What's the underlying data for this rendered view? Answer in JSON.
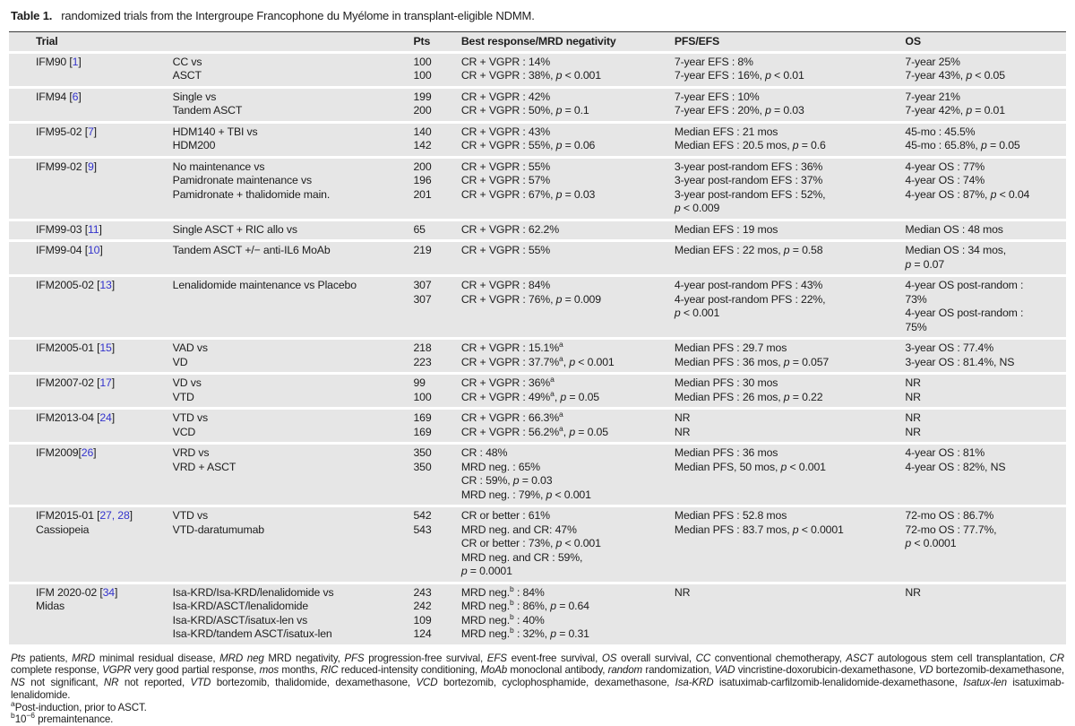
{
  "title": {
    "label": "Table 1.",
    "text": "randomized trials from the Intergroupe Francophone du Myélome in transplant-eligible NDMM."
  },
  "colors": {
    "row_background": "#e6e6e6",
    "citation_blue": "#3333cc",
    "header_rule": "#3a3a3a"
  },
  "table": {
    "headers": {
      "trial": "Trial",
      "pts": "Pts",
      "response": "Best response/MRD negativity",
      "pfs": "PFS/EFS",
      "os": "OS"
    },
    "rows": [
      {
        "trial": [
          "IFM90 [[1]]"
        ],
        "arms": [
          "CC vs",
          "ASCT"
        ],
        "pts": [
          "100",
          "100"
        ],
        "response": [
          "CR + VGPR : 14%",
          "CR + VGPR : 38%, *p* < 0.001"
        ],
        "pfs": [
          "7-year EFS : 8%",
          "7-year EFS : 16%, *p* < 0.01"
        ],
        "os": [
          "7-year 25%",
          "7-year 43%, *p* < 0.05"
        ]
      },
      {
        "trial": [
          "IFM94 [[6]]"
        ],
        "arms": [
          "Single vs",
          "Tandem ASCT"
        ],
        "pts": [
          "199",
          "200"
        ],
        "response": [
          "CR + VGPR : 42%",
          "CR + VGPR : 50%, *p* = 0.1"
        ],
        "pfs": [
          "7-year EFS : 10%",
          "7-year EFS : 20%, *p* = 0.03"
        ],
        "os": [
          "7-year 21%",
          "7-year 42%, *p* = 0.01"
        ]
      },
      {
        "trial": [
          "IFM95-02 [[7]]"
        ],
        "arms": [
          "HDM140 + TBI vs",
          "HDM200"
        ],
        "pts": [
          "140",
          "142"
        ],
        "response": [
          "CR + VGPR : 43%",
          "CR + VGPR : 55%, *p* = 0.06"
        ],
        "pfs": [
          "Median EFS : 21 mos",
          "Median EFS : 20.5 mos, *p* = 0.6"
        ],
        "os": [
          "45-mo : 45.5%",
          "45-mo : 65.8%, *p* = 0.05"
        ]
      },
      {
        "trial": [
          "IFM99-02 [[9]]"
        ],
        "arms": [
          "No maintenance vs",
          "Pamidronate maintenance vs",
          "Pamidronate + thalidomide main."
        ],
        "pts": [
          "200",
          "196",
          "201"
        ],
        "response": [
          "CR + VGPR : 55%",
          "CR + VGPR : 57%",
          "CR + VGPR : 67%, *p* = 0.03"
        ],
        "pfs": [
          "3-year post-random EFS : 36%",
          "3-year post-random EFS : 37%",
          "3-year post-random EFS : 52%,",
          "*p* < 0.009"
        ],
        "os": [
          "4-year OS : 77%",
          "4-year OS : 74%",
          "4-year OS : 87%, *p* < 0.04"
        ]
      },
      {
        "trial": [
          "IFM99-03 [[11]]"
        ],
        "arms": [
          "Single ASCT + RIC allo vs"
        ],
        "pts": [
          "65"
        ],
        "response": [
          "CR + VGPR : 62.2%"
        ],
        "pfs": [
          "Median EFS : 19 mos"
        ],
        "os": [
          "Median OS : 48 mos"
        ]
      },
      {
        "trial": [
          "IFM99-04 [[10]]"
        ],
        "arms": [
          "Tandem ASCT +/− anti-IL6 MoAb"
        ],
        "pts": [
          "219"
        ],
        "response": [
          "CR + VGPR : 55%"
        ],
        "pfs": [
          "Median EFS : 22 mos, *p* = 0.58"
        ],
        "os": [
          "Median OS : 34 mos,",
          "*p* = 0.07"
        ]
      },
      {
        "trial": [
          "IFM2005-02 [[13]]"
        ],
        "arms": [
          "Lenalidomide maintenance vs Placebo"
        ],
        "pts": [
          "307",
          "307"
        ],
        "response": [
          "CR + VGPR : 84%",
          "CR + VGPR : 76%, *p* = 0.009"
        ],
        "pfs": [
          "4-year post-random PFS : 43%",
          "4-year post-random PFS : 22%,",
          "*p* < 0.001"
        ],
        "os": [
          "4-year OS post-random :",
          "73%",
          "4-year OS post-random :",
          "75%"
        ]
      },
      {
        "trial": [
          "IFM2005-01 [[15]]"
        ],
        "arms": [
          "VAD vs",
          "VD"
        ],
        "pts": [
          "218",
          "223"
        ],
        "response": [
          "CR + VGPR : 15.1%^{a}",
          "CR + VGPR : 37.7%^{a}, *p* < 0.001"
        ],
        "pfs": [
          "Median PFS : 29.7 mos",
          "Median PFS : 36 mos, *p* = 0.057"
        ],
        "os": [
          "3-year OS : 77.4%",
          "3-year OS : 81.4%, NS"
        ]
      },
      {
        "trial": [
          "IFM2007-02 [[17]]"
        ],
        "arms": [
          "VD vs",
          "VTD"
        ],
        "pts": [
          "99",
          "100"
        ],
        "response": [
          "CR + VGPR : 36%^{a}",
          "CR + VGPR : 49%^{a}, *p* = 0.05"
        ],
        "pfs": [
          "Median PFS : 30 mos",
          "Median PFS : 26 mos, *p* = 0.22"
        ],
        "os": [
          "NR",
          "NR"
        ]
      },
      {
        "trial": [
          "IFM2013-04 [[24]]"
        ],
        "arms": [
          "VTD vs",
          "VCD"
        ],
        "pts": [
          "169",
          "169"
        ],
        "response": [
          "CR + VGPR : 66.3%^{a}",
          "CR + VGPR : 56.2%^{a}, *p* = 0.05"
        ],
        "pfs": [
          "NR",
          "NR"
        ],
        "os": [
          "NR",
          "NR"
        ]
      },
      {
        "trial": [
          "IFM2009[[26]]"
        ],
        "arms": [
          "VRD vs",
          "VRD + ASCT"
        ],
        "pts": [
          "350",
          "350"
        ],
        "response": [
          "CR : 48%",
          "MRD neg. : 65%",
          "CR : 59%, *p* = 0.03",
          "MRD neg. : 79%, *p* < 0.001"
        ],
        "pfs": [
          "Median PFS : 36 mos",
          "Median PFS, 50 mos, *p* < 0.001"
        ],
        "os": [
          "4-year OS : 81%",
          "4-year OS : 82%, NS"
        ]
      },
      {
        "trial": [
          "IFM2015-01 [[27, 28]]",
          "Cassiopeia"
        ],
        "arms": [
          "VTD vs",
          "VTD-daratumumab"
        ],
        "pts": [
          "542",
          "543"
        ],
        "response": [
          "CR or better : 61%",
          "MRD neg. and CR: 47%",
          "CR or better : 73%, *p* < 0.001",
          "MRD neg. and CR : 59%,",
          "*p* = 0.0001"
        ],
        "pfs": [
          "Median PFS : 52.8 mos",
          "Median PFS : 83.7 mos, *p* < 0.0001"
        ],
        "os": [
          "72-mo OS : 86.7%",
          "72-mo OS : 77.7%,",
          "*p* < 0.0001"
        ]
      },
      {
        "trial": [
          "IFM 2020-02 [[34]]",
          "Midas"
        ],
        "arms": [
          "Isa-KRD/Isa-KRD/lenalidomide vs",
          "Isa-KRD/ASCT/lenalidomide",
          "Isa-KRD/ASCT/isatux-len vs",
          "Isa-KRD/tandem ASCT/isatux-len"
        ],
        "pts": [
          "243",
          "242",
          "109",
          "124"
        ],
        "response": [
          "MRD neg.^{b} : 84%",
          "MRD neg.^{b} : 86%, *p* = 0.64",
          "MRD neg.^{b} : 40%",
          "MRD neg.^{b} : 32%, *p* = 0.31"
        ],
        "pfs": [
          "NR"
        ],
        "os": [
          "NR"
        ]
      }
    ]
  },
  "footnotes": {
    "abbreviations": "*Pts* patients, *MRD* minimal residual disease, *MRD neg* MRD negativity, *PFS* progression-free survival, *EFS* event-free survival, *OS* overall survival, *CC* conventional chemotherapy, *ASCT* autologous stem cell transplantation, *CR* complete response, *VGPR* very good partial response, *mos* months, *RIC* reduced-intensity conditioning, *MoAb* monoclonal antibody, *random* randomization, *VAD* vincristine-doxorubicin-dexamethasone, *VD* bortezomib-dexamethasone, *NS* not significant, *NR* not reported, *VTD* bortezomib, thalidomide, dexamethasone, *VCD* bortezomib, cyclophosphamide, dexamethasone, *Isa-KRD* isatuximab-carfilzomib-lenalidomide-dexamethasone, *Isatux-len* isatuximab-lenalidomide.",
    "note_a": "^{a}Post-induction, prior to ASCT.",
    "note_b": "^{b}10^{−6} premaintenance."
  }
}
